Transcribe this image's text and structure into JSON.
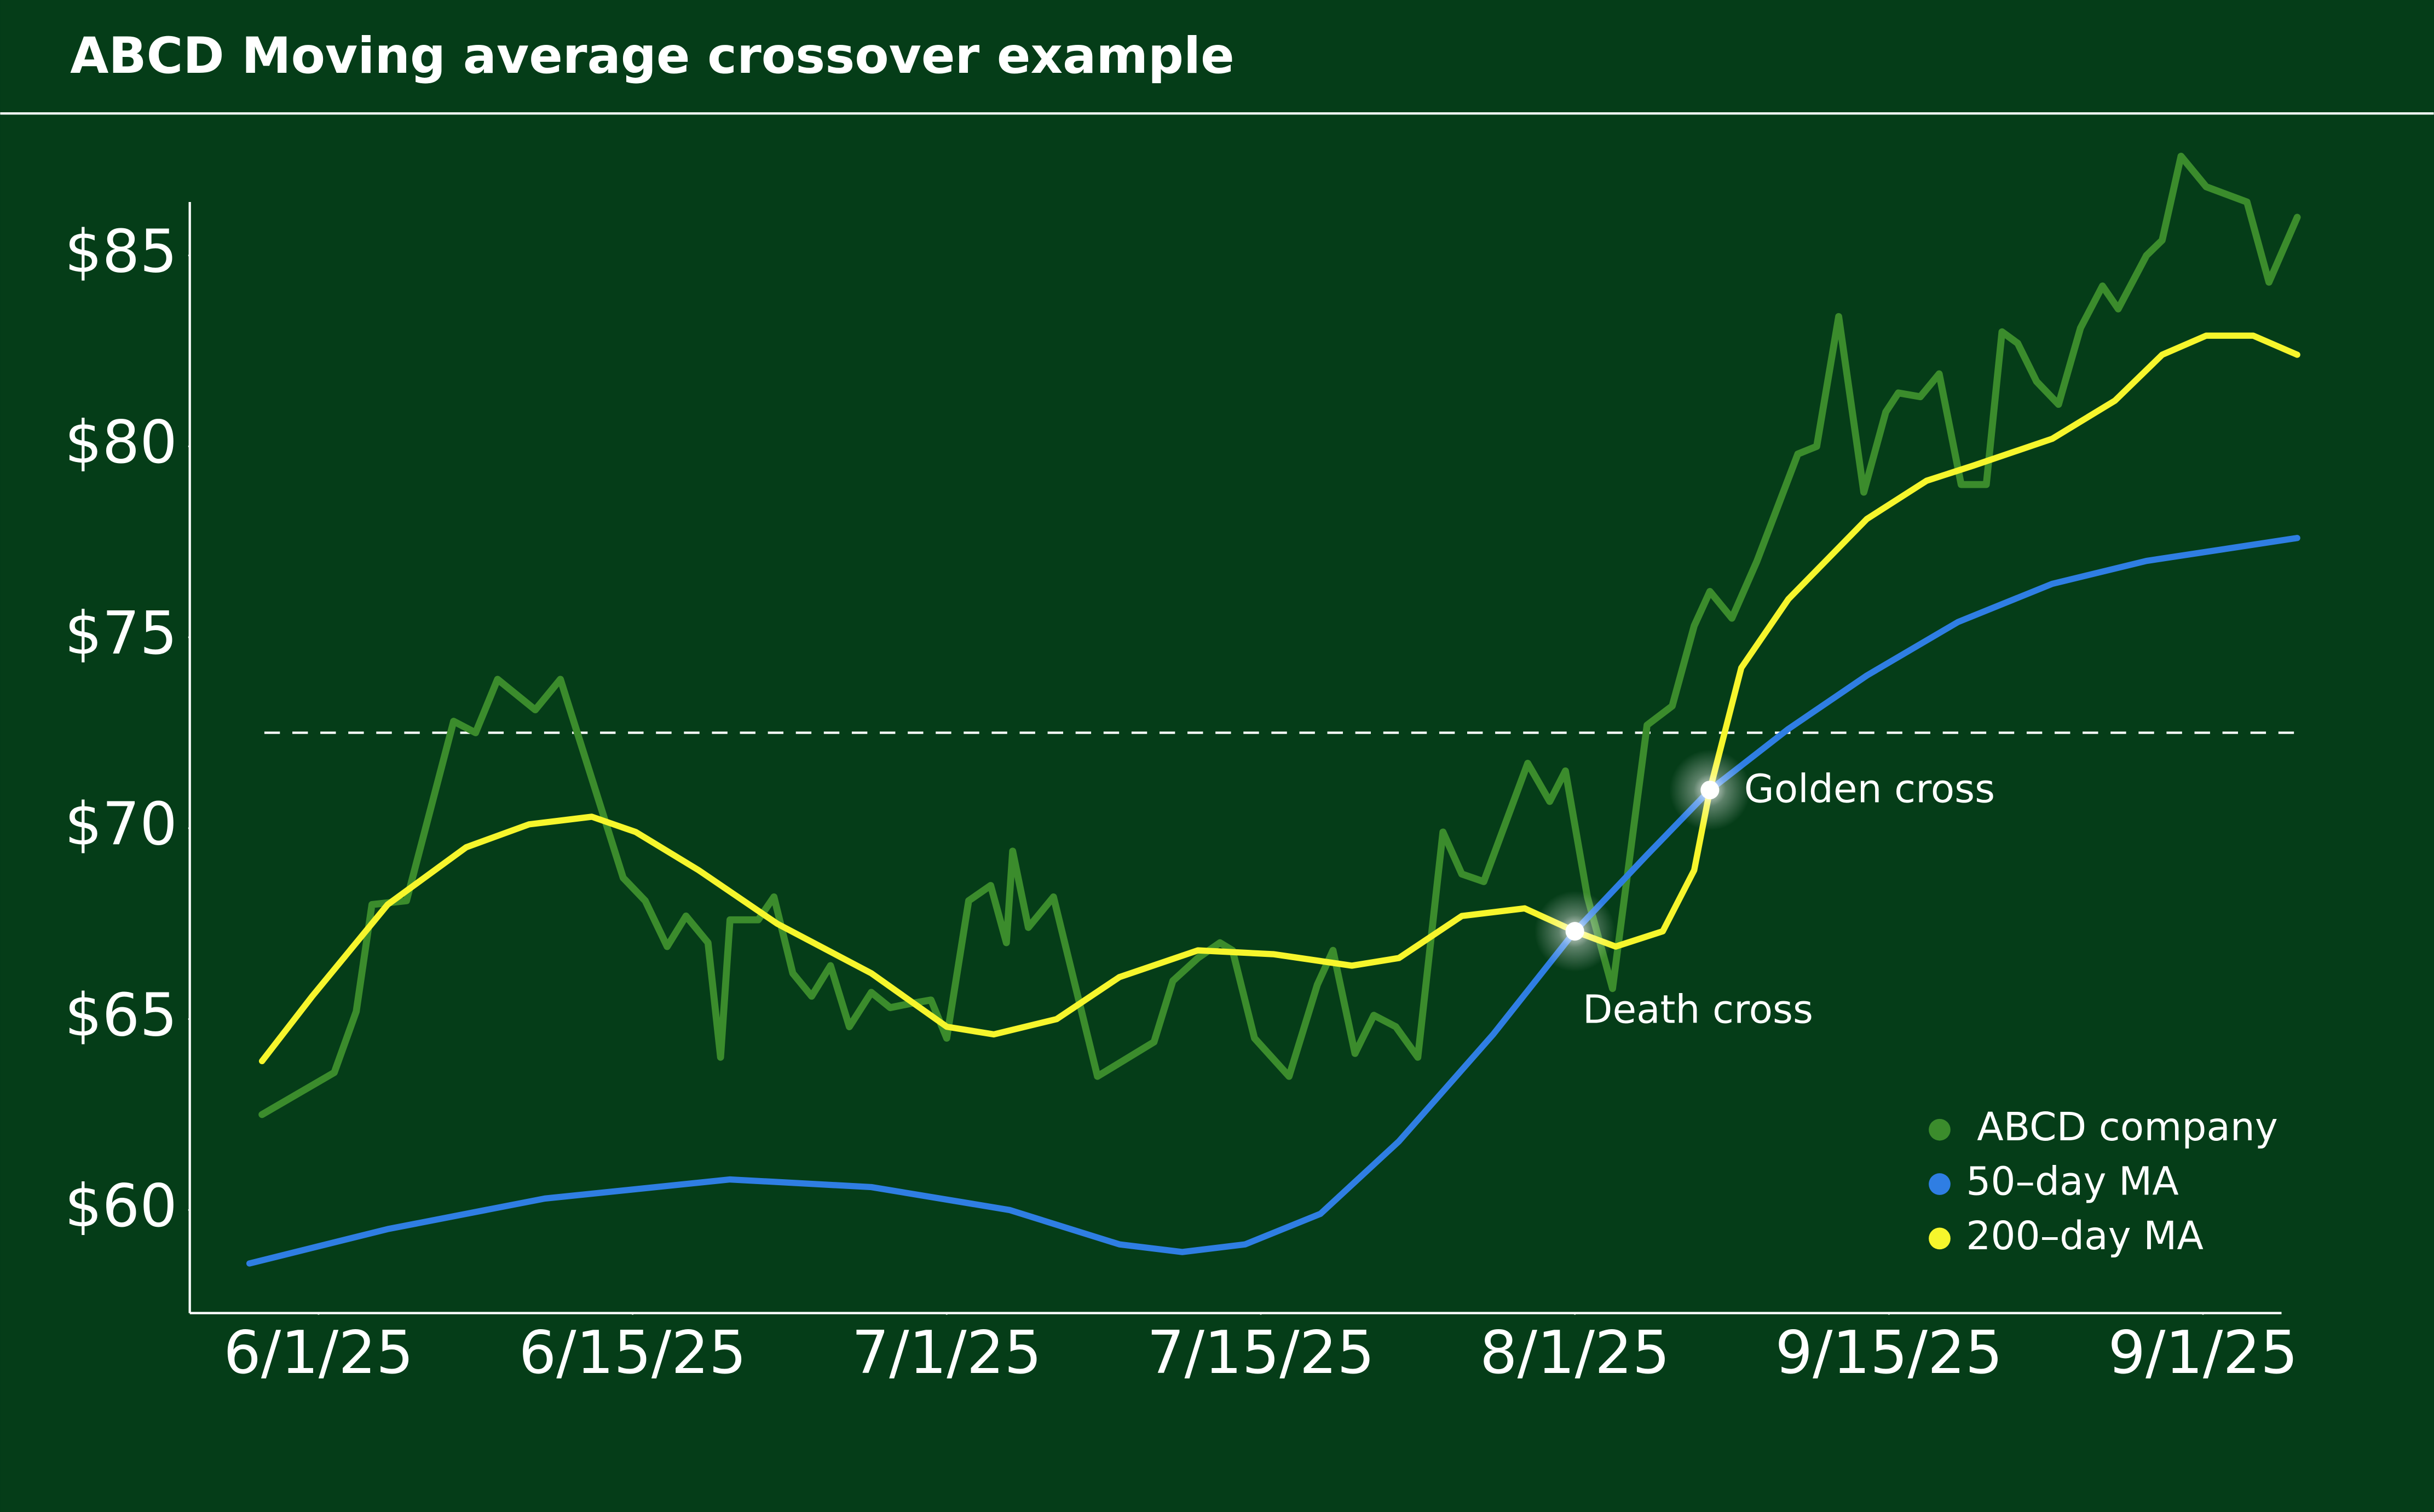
{
  "chart_data": {
    "type": "line",
    "title": "ABCD Moving average crossover example",
    "xlim": [
      -4.1,
      62.5
    ],
    "xticks": [
      {
        "value": 0,
        "label": "6/1/25"
      },
      {
        "value": 10,
        "label": "6/15/25"
      },
      {
        "value": 20,
        "label": "7/1/25"
      },
      {
        "value": 30,
        "label": "7/15/25"
      },
      {
        "value": 40,
        "label": "8/1/25"
      },
      {
        "value": 50,
        "label": "9/15/25"
      },
      {
        "value": 60,
        "label": "9/1/25"
      }
    ],
    "ylim": [
      57.3,
      86.4
    ],
    "yticks": [
      {
        "value": 60,
        "label": "$60"
      },
      {
        "value": 65,
        "label": "$65"
      },
      {
        "value": 70,
        "label": "$70"
      },
      {
        "value": 75,
        "label": "$75"
      },
      {
        "value": 80,
        "label": "$80"
      },
      {
        "value": 85,
        "label": "$85"
      }
    ],
    "reference_line": 72.5,
    "legend": "lower right",
    "series": [
      {
        "name": "ABCD company",
        "color": "#3b8c2c",
        "x": [
          -1.8,
          0.5,
          1.2,
          1.7,
          2.8,
          4.3,
          5.0,
          5.7,
          6.9,
          7.7,
          9.7,
          10.4,
          11.1,
          11.7,
          12.4,
          12.8,
          13.1,
          14.0,
          14.5,
          15.1,
          15.7,
          16.3,
          16.9,
          17.6,
          18.2,
          18.8,
          19.5,
          20.0,
          20.7,
          21.4,
          21.9,
          22.1,
          22.6,
          23.4,
          24.8,
          26.6,
          27.2,
          28.0,
          28.7,
          29.1,
          29.8,
          30.9,
          31.8,
          32.3,
          33.0,
          33.6,
          34.3,
          35.0,
          35.8,
          36.4,
          37.1,
          38.5,
          39.2,
          39.7,
          40.4,
          41.2,
          42.3,
          43.1,
          43.8,
          44.3,
          45.0,
          45.8,
          47.1,
          47.7,
          48.4,
          49.2,
          49.9,
          50.3,
          51.0,
          51.6,
          52.3,
          53.1,
          53.6,
          54.1,
          54.7,
          55.4,
          56.1,
          56.8,
          57.3,
          58.2,
          58.7,
          59.3,
          60.1,
          61.4,
          62.1,
          63.0
        ],
        "values": [
          62.5,
          63.6,
          65.2,
          68.0,
          68.1,
          72.8,
          72.5,
          73.9,
          73.1,
          73.9,
          68.7,
          68.1,
          66.9,
          67.7,
          67.0,
          64.0,
          67.6,
          67.6,
          68.2,
          66.2,
          65.6,
          66.4,
          64.8,
          65.7,
          65.3,
          65.4,
          65.5,
          64.5,
          68.1,
          68.5,
          67.0,
          69.4,
          67.4,
          68.2,
          63.5,
          64.4,
          66.0,
          66.6,
          67.0,
          66.8,
          64.5,
          63.5,
          65.9,
          66.8,
          64.1,
          65.1,
          64.8,
          64.0,
          69.9,
          68.8,
          68.6,
          71.7,
          70.7,
          71.5,
          68.2,
          65.8,
          72.7,
          73.2,
          75.3,
          76.2,
          75.5,
          77.0,
          79.8,
          80.0,
          83.4,
          78.8,
          80.9,
          81.4,
          81.3,
          81.9,
          79.0,
          79.0,
          83.0,
          82.7,
          81.7,
          81.1,
          83.1,
          84.2,
          83.6,
          85.0,
          85.4,
          87.6,
          86.8,
          86.4,
          84.3,
          86.0
        ]
      },
      {
        "name": "50–day MA",
        "color": "#2f7ee3",
        "x": [
          -2.2,
          2.2,
          7.2,
          13.1,
          17.6,
          22.0,
          25.5,
          27.5,
          29.5,
          31.9,
          34.4,
          37.4,
          40.0,
          42.3,
          44.3,
          46.8,
          49.3,
          52.2,
          55.2,
          58.2,
          63.0
        ],
        "values": [
          58.6,
          59.5,
          60.3,
          60.8,
          60.6,
          60.0,
          59.1,
          58.9,
          59.1,
          59.9,
          61.8,
          64.6,
          67.3,
          69.3,
          71.0,
          72.6,
          74.0,
          75.4,
          76.4,
          77.0,
          77.6
        ]
      },
      {
        "name": "200–day MA",
        "color": "#f6f62c",
        "x": [
          -1.8,
          -0.2,
          2.2,
          4.7,
          6.7,
          8.7,
          10.1,
          12.1,
          14.6,
          17.6,
          20.0,
          21.5,
          23.5,
          25.5,
          28.0,
          30.4,
          32.9,
          34.4,
          36.4,
          38.4,
          40.0,
          41.3,
          42.8,
          43.8,
          44.3,
          45.3,
          46.8,
          49.3,
          51.2,
          52.7,
          55.2,
          57.2,
          58.7,
          60.1,
          61.6,
          63.0
        ],
        "values": [
          63.9,
          65.6,
          68.0,
          69.5,
          70.1,
          70.3,
          69.9,
          68.9,
          67.5,
          66.2,
          64.8,
          64.6,
          65.0,
          66.1,
          66.8,
          66.7,
          66.4,
          66.6,
          67.7,
          67.9,
          67.3,
          66.9,
          67.3,
          68.9,
          71.0,
          74.2,
          76.0,
          78.1,
          79.1,
          79.5,
          80.2,
          81.2,
          82.4,
          82.9,
          82.9,
          82.4
        ]
      }
    ],
    "annotations": [
      {
        "text": "Death cross",
        "x": 40.0,
        "y": 67.3
      },
      {
        "text": "Golden cross",
        "x": 44.3,
        "y": 71.0
      }
    ]
  }
}
